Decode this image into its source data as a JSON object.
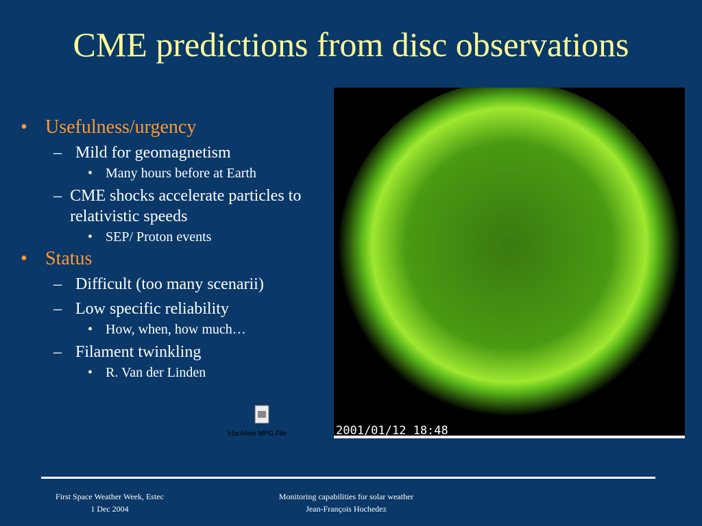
{
  "title": "CME predictions from disc observations",
  "bullets": [
    {
      "text": "Usefulness/urgency",
      "items": [
        {
          "text": "Mild for geomagnetism",
          "items": [
            "Many hours before at Earth"
          ]
        },
        {
          "text": "CME shocks accelerate particles to relativistic speeds",
          "items": [
            "SEP/ Proton events"
          ]
        }
      ]
    },
    {
      "text": "Status",
      "items": [
        {
          "text": "Difficult (too many scenarii)",
          "items": []
        },
        {
          "text": "Low specific reliability",
          "items": [
            "How, when, how much…"
          ]
        },
        {
          "text": "Filament twinkling",
          "items": [
            "R. Van der Linden"
          ]
        }
      ]
    }
  ],
  "image": {
    "timestamp": "2001/01/12 18:48"
  },
  "file_icon": {
    "label": "IrfanView MPG File"
  },
  "footer": {
    "left": [
      "First Space Weather Week, Estec",
      "1 Dec 2004"
    ],
    "right": [
      "Monitoring capabilities for solar weather",
      "Jean-François Hochedez"
    ]
  }
}
